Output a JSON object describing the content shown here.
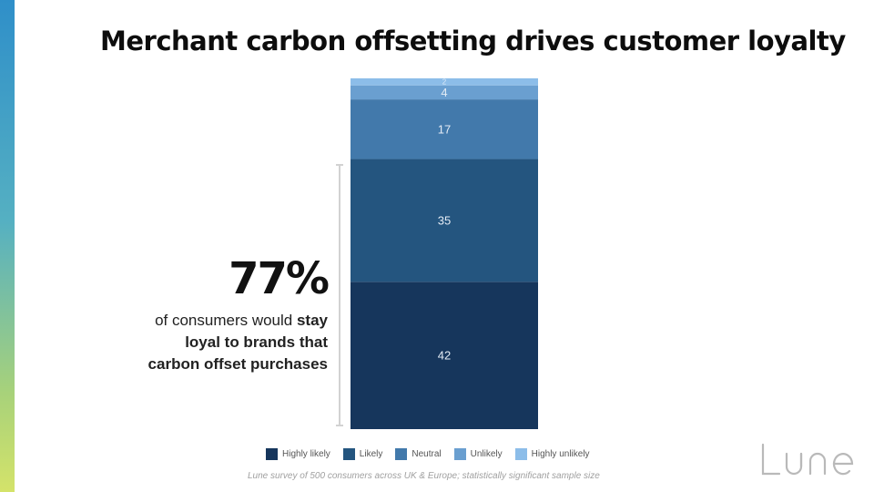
{
  "title": "Merchant carbon offsetting drives customer loyalty",
  "callout": {
    "big_number": "77%",
    "text_plain": "of consumers would ",
    "text_bold_1": "stay",
    "text_bold_2": "loyal to brands that",
    "text_bold_3": "carbon offset purchases"
  },
  "footnote": "Lune survey of 500 consumers across UK & Europe; statistically significant sample size",
  "logo_text": "Lune",
  "chart_data": {
    "type": "bar",
    "stacked": true,
    "title": "",
    "xlabel": "",
    "ylabel": "",
    "ylim": [
      0,
      100
    ],
    "legend_position": "bottom",
    "series": [
      {
        "name": "Highly likely",
        "values": [
          42
        ],
        "label": "42",
        "color": "#16365c"
      },
      {
        "name": "Likely",
        "values": [
          35
        ],
        "label": "35",
        "color": "#24557f"
      },
      {
        "name": "Neutral",
        "values": [
          17
        ],
        "label": "17",
        "color": "#4279ab"
      },
      {
        "name": "Unlikely",
        "values": [
          4
        ],
        "label": "4",
        "color": "#6a9fd0"
      },
      {
        "name": "Highly unlikely",
        "values": [
          2
        ],
        "label": "2",
        "color": "#8cbde9"
      }
    ]
  }
}
